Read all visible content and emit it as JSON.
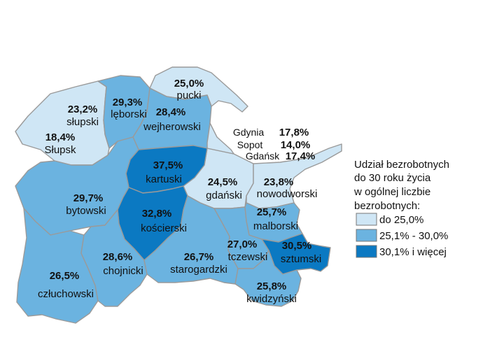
{
  "legend": {
    "title_lines": [
      "Udział bezrobotnych",
      "do 30 roku życia",
      "w ogólnej liczbie",
      "bezrobotnych:"
    ],
    "items": [
      {
        "label": "do 25,0%",
        "color": "#cfe6f5"
      },
      {
        "label": "25,1% - 30,0%",
        "color": "#6bb3e0"
      },
      {
        "label": "30,1% i więcej",
        "color": "#0b79c2"
      }
    ]
  },
  "colors": {
    "low": "#cfe6f5",
    "mid": "#6bb3e0",
    "high": "#0b79c2",
    "border": "#9a9a9a"
  },
  "regions": {
    "pucki": {
      "name": "pucki",
      "value": "25,0%",
      "class": "low"
    },
    "slupski": {
      "name": "słupski",
      "value": "23,2%",
      "class": "low"
    },
    "slupsk": {
      "name": "Słupsk",
      "value": "18,4%",
      "class": "low"
    },
    "leborski": {
      "name": "lęborski",
      "value": "29,3%",
      "class": "mid"
    },
    "wejherowski": {
      "name": "wejherowski",
      "value": "28,4%",
      "class": "mid"
    },
    "kartuski": {
      "name": "kartuski",
      "value": "37,5%",
      "class": "high"
    },
    "gdanski": {
      "name": "gdański",
      "value": "24,5%",
      "class": "low"
    },
    "nowodworski": {
      "name": "nowodworski",
      "value": "23,8%",
      "class": "low"
    },
    "bytowski": {
      "name": "bytowski",
      "value": "29,7%",
      "class": "mid"
    },
    "koscierski": {
      "name": "kościerski",
      "value": "32,8%",
      "class": "high"
    },
    "malborski": {
      "name": "malborski",
      "value": "25,7%",
      "class": "mid"
    },
    "tczewski": {
      "name": "tczewski",
      "value": "27,0%",
      "class": "mid"
    },
    "sztumski": {
      "name": "sztumski",
      "value": "30,5%",
      "class": "high"
    },
    "chojnicki": {
      "name": "chojnicki",
      "value": "28,6%",
      "class": "mid"
    },
    "starogardzki": {
      "name": "starogardzki",
      "value": "26,7%",
      "class": "mid"
    },
    "czluchowski": {
      "name": "człuchowski",
      "value": "26,5%",
      "class": "mid"
    },
    "kwidzynski": {
      "name": "kwidzyński",
      "value": "25,8%",
      "class": "mid"
    }
  },
  "cities": [
    {
      "name": "Gdynia",
      "value": "17,8%"
    },
    {
      "name": "Sopot",
      "value": "14,0%"
    },
    {
      "name": "Gdańsk",
      "value": "17,4%"
    }
  ]
}
